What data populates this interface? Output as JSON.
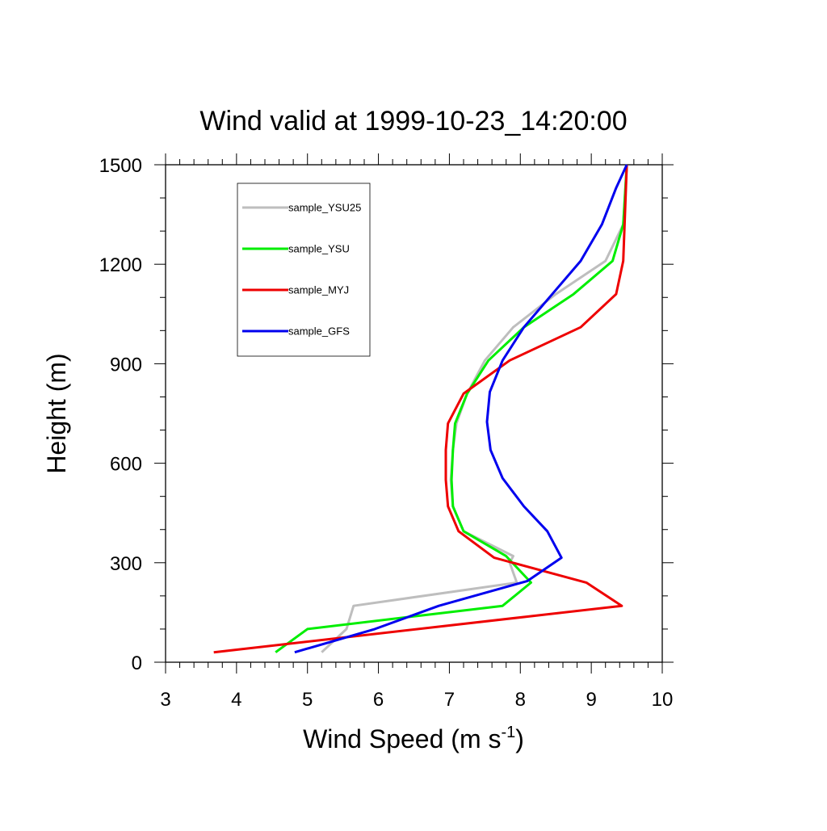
{
  "chart_data": {
    "type": "line",
    "title": "Wind valid at 1999-10-23_14:20:00",
    "xlabel": "Wind Speed (m s",
    "xlabel_superscript": "-1",
    "xlabel_suffix": ")",
    "ylabel": "Height (m)",
    "xlim": [
      3,
      10
    ],
    "ylim": [
      0,
      1500
    ],
    "xticks": [
      "3",
      "4",
      "5",
      "6",
      "7",
      "8",
      "9",
      "10"
    ],
    "yticks": [
      "0",
      "300",
      "600",
      "900",
      "1200",
      "1500"
    ],
    "grid": false,
    "legend_position": "top-left",
    "series": [
      {
        "name": "sample_YSU25",
        "color": "#bebebe",
        "points": [
          [
            5.2,
            30
          ],
          [
            5.55,
            100
          ],
          [
            5.65,
            170
          ],
          [
            7.95,
            240
          ],
          [
            7.85,
            300
          ],
          [
            7.9,
            320
          ],
          [
            7.2,
            395
          ],
          [
            7.05,
            470
          ],
          [
            7.02,
            550
          ],
          [
            7.05,
            640
          ],
          [
            7.1,
            720
          ],
          [
            7.25,
            810
          ],
          [
            7.5,
            910
          ],
          [
            7.9,
            1010
          ],
          [
            8.5,
            1110
          ],
          [
            9.2,
            1210
          ],
          [
            9.45,
            1320
          ],
          [
            9.5,
            1500
          ]
        ]
      },
      {
        "name": "sample_YSU",
        "color": "#00ee00",
        "points": [
          [
            4.55,
            30
          ],
          [
            5.0,
            100
          ],
          [
            7.75,
            170
          ],
          [
            8.15,
            240
          ],
          [
            7.8,
            320
          ],
          [
            7.2,
            395
          ],
          [
            7.05,
            470
          ],
          [
            7.03,
            550
          ],
          [
            7.05,
            640
          ],
          [
            7.08,
            720
          ],
          [
            7.25,
            810
          ],
          [
            7.55,
            910
          ],
          [
            8.05,
            1010
          ],
          [
            8.75,
            1110
          ],
          [
            9.3,
            1210
          ],
          [
            9.45,
            1320
          ],
          [
            9.5,
            1500
          ]
        ]
      },
      {
        "name": "sample_MYJ",
        "color": "#ee0000",
        "points": [
          [
            3.68,
            30
          ],
          [
            9.43,
            170
          ],
          [
            8.93,
            240
          ],
          [
            7.63,
            315
          ],
          [
            7.13,
            395
          ],
          [
            6.98,
            470
          ],
          [
            6.95,
            550
          ],
          [
            6.95,
            640
          ],
          [
            6.98,
            720
          ],
          [
            7.2,
            810
          ],
          [
            7.85,
            910
          ],
          [
            8.85,
            1010
          ],
          [
            9.35,
            1110
          ],
          [
            9.45,
            1210
          ],
          [
            9.5,
            1500
          ]
        ]
      },
      {
        "name": "sample_GFS",
        "color": "#0000ee",
        "points": [
          [
            4.82,
            30
          ],
          [
            5.95,
            100
          ],
          [
            6.85,
            170
          ],
          [
            8.1,
            245
          ],
          [
            8.58,
            315
          ],
          [
            8.38,
            395
          ],
          [
            8.05,
            470
          ],
          [
            7.75,
            555
          ],
          [
            7.58,
            640
          ],
          [
            7.53,
            725
          ],
          [
            7.57,
            815
          ],
          [
            7.75,
            910
          ],
          [
            8.05,
            1010
          ],
          [
            8.45,
            1110
          ],
          [
            8.85,
            1210
          ],
          [
            9.15,
            1320
          ],
          [
            9.35,
            1430
          ],
          [
            9.5,
            1500
          ]
        ]
      }
    ]
  }
}
